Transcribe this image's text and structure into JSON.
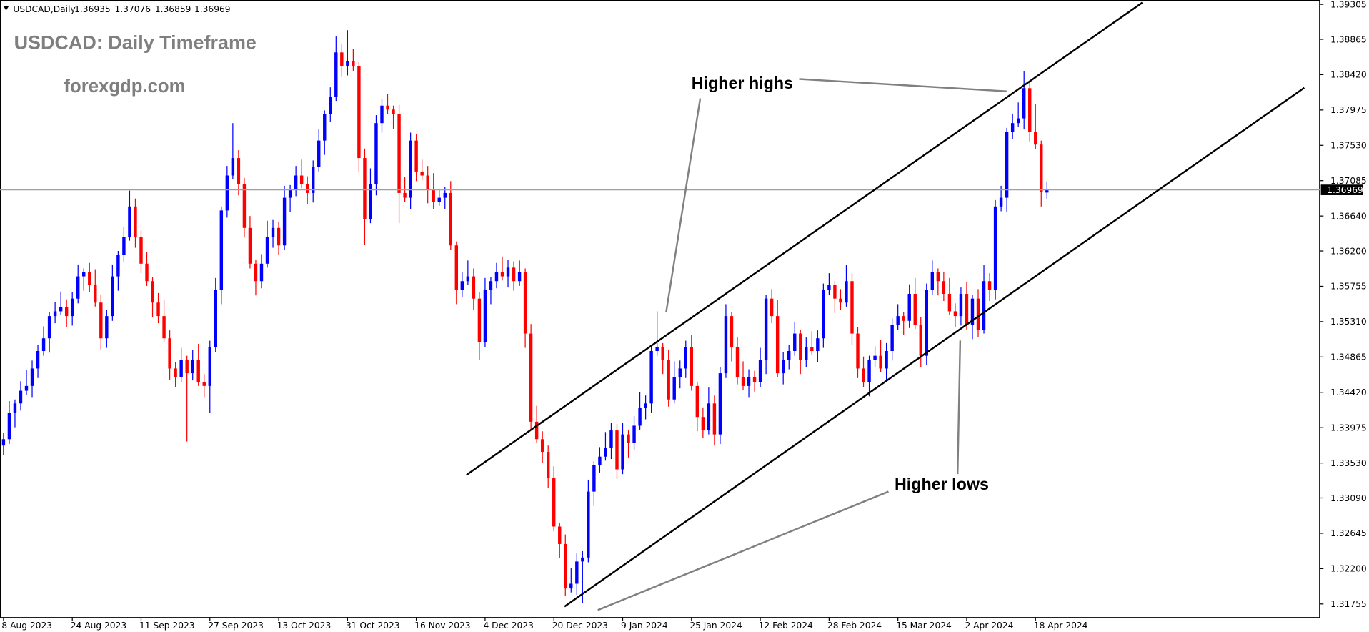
{
  "chart_data": {
    "type": "candlestick",
    "symbol_header": "USDCAD,Daily",
    "title": "USDCAD: Daily Timeframe",
    "subtitle": "forexgdp.com",
    "annotations": [
      "Higher highs",
      "Higher lows"
    ],
    "up_color": "#0000ff",
    "down_color": "#ff0000",
    "ylim": [
      1.3159,
      1.3936
    ],
    "yticks": [
      1.39305,
      1.38865,
      {
        "value": 1.3842,
        "label": "1.38420"
      },
      1.37975,
      {
        "value": 1.3753,
        "label": "1.37530"
      },
      1.37085,
      {
        "value": 1.3664,
        "label": "1.36640"
      },
      {
        "value": 1.362,
        "label": "1.36200"
      },
      1.35755,
      {
        "value": 1.3531,
        "label": "1.35310"
      },
      1.34865,
      {
        "value": 1.3442,
        "label": "1.34420"
      },
      1.33975,
      {
        "value": 1.3353,
        "label": "1.33530"
      },
      {
        "value": 1.3309,
        "label": "1.33090"
      },
      1.32645,
      {
        "value": 1.322,
        "label": "1.32200"
      },
      1.31755
    ],
    "categories": [
      "8 Aug 2023",
      null,
      null,
      null,
      null,
      null,
      null,
      null,
      null,
      null,
      null,
      null,
      "24 Aug 2023",
      null,
      null,
      null,
      null,
      null,
      null,
      null,
      null,
      null,
      null,
      null,
      "11 Sep 2023",
      null,
      null,
      null,
      null,
      null,
      null,
      null,
      null,
      null,
      null,
      null,
      "27 Sep 2023",
      null,
      null,
      null,
      null,
      null,
      null,
      null,
      null,
      null,
      null,
      null,
      "13 Oct 2023",
      null,
      null,
      null,
      null,
      null,
      null,
      null,
      null,
      null,
      null,
      null,
      "31 Oct 2023",
      null,
      null,
      null,
      null,
      null,
      null,
      null,
      null,
      null,
      null,
      null,
      "16 Nov 2023",
      null,
      null,
      null,
      null,
      null,
      null,
      null,
      null,
      null,
      null,
      null,
      "4 Dec 2023",
      null,
      null,
      null,
      null,
      null,
      null,
      null,
      null,
      null,
      null,
      null,
      "20 Dec 2023",
      null,
      null,
      null,
      null,
      null,
      null,
      null,
      null,
      null,
      null,
      null,
      "9 Jan 2024",
      null,
      null,
      null,
      null,
      null,
      null,
      null,
      null,
      null,
      null,
      null,
      "25 Jan 2024",
      null,
      null,
      null,
      null,
      null,
      null,
      null,
      null,
      null,
      null,
      null,
      "12 Feb 2024",
      null,
      null,
      null,
      null,
      null,
      null,
      null,
      null,
      null,
      null,
      null,
      "28 Feb 2024",
      null,
      null,
      null,
      null,
      null,
      null,
      null,
      null,
      null,
      null,
      null,
      "15 Mar 2024",
      null,
      null,
      null,
      null,
      null,
      null,
      null,
      null,
      null,
      null,
      null,
      "2 Apr 2024",
      null,
      null,
      null,
      null,
      null,
      null,
      null,
      null,
      null,
      null,
      null,
      "18 Apr 2024",
      null,
      null
    ],
    "open": [
      1.3375,
      1.3383,
      1.3416,
      1.3428,
      1.3444,
      1.345,
      1.3472,
      1.3494,
      1.351,
      1.3538,
      1.3544,
      1.3549,
      1.3538,
      1.356,
      1.3588,
      1.3593,
      1.3577,
      1.3555,
      1.351,
      1.3538,
      1.3588,
      1.3615,
      1.3638,
      1.3676,
      1.3638,
      1.3604,
      1.3582,
      1.3555,
      1.3538,
      1.351,
      1.3472,
      1.3461,
      1.3483,
      1.3466,
      1.3483,
      1.3455,
      1.345,
      1.3499,
      1.3571,
      1.3671,
      1.3715,
      1.3737,
      1.3704,
      1.3649,
      1.3604,
      1.3582,
      1.3604,
      1.3638,
      1.3649,
      1.3627,
      1.3687,
      1.3698,
      1.3715,
      1.3704,
      1.3693,
      1.3726,
      1.3759,
      1.3792,
      1.3814,
      1.387,
      1.3853,
      1.3859,
      1.3853,
      1.3737,
      1.366,
      1.3704,
      1.3781,
      1.3803,
      1.3798,
      1.3792,
      1.3693,
      1.3687,
      1.3759,
      1.372,
      1.3715,
      1.3698,
      1.3682,
      1.3687,
      1.3693,
      1.3627,
      1.3571,
      1.3582,
      1.3588,
      1.356,
      1.3505,
      1.3571,
      1.3582,
      1.3593,
      1.3588,
      1.3599,
      1.3582,
      1.3593,
      1.3516,
      1.3405,
      1.3383,
      1.3367,
      1.3334,
      1.3273,
      1.3251,
      1.3195,
      1.3201,
      1.3229,
      1.3234,
      1.3317,
      1.335,
      1.3361,
      1.3372,
      1.3394,
      1.3345,
      1.3389,
      1.3378,
      1.34,
      1.3422,
      1.3428,
      1.3494,
      1.3499,
      1.3483,
      1.3433,
      1.3461,
      1.3472,
      1.3499,
      1.345,
      1.3411,
      1.3394,
      1.3428,
      1.3389,
      1.3466,
      1.3538,
      1.3499,
      1.3461,
      1.345,
      1.3461,
      1.3455,
      1.3483,
      1.356,
      1.3538,
      1.3466,
      1.3483,
      1.3494,
      1.3516,
      1.3483,
      1.3499,
      1.3494,
      1.351,
      1.3571,
      1.3577,
      1.356,
      1.3555,
      1.3582,
      1.3516,
      1.3472,
      1.3455,
      1.3483,
      1.3488,
      1.3472,
      1.3494,
      1.3527,
      1.3538,
      1.3532,
      1.3566,
      1.3527,
      1.3488,
      1.3571,
      1.3593,
      1.3582,
      1.3566,
      1.3544,
      1.3538,
      1.3566,
      1.3527,
      1.356,
      1.3521,
      1.3582,
      1.3571,
      1.3676,
      1.3687,
      1.377,
      1.3781,
      1.3787,
      1.3825,
      1.377,
      1.3754,
      1.36935
    ],
    "high": [
      1.3391,
      1.3431,
      1.3433,
      1.3456,
      1.347,
      1.3482,
      1.3502,
      1.3525,
      1.3543,
      1.3556,
      1.3569,
      1.3559,
      1.3568,
      1.3603,
      1.3598,
      1.3605,
      1.3597,
      1.3565,
      1.3546,
      1.3603,
      1.362,
      1.365,
      1.3696,
      1.3686,
      1.3646,
      1.3619,
      1.3587,
      1.3567,
      1.3558,
      1.352,
      1.348,
      1.3498,
      1.3488,
      1.3495,
      1.3503,
      1.3465,
      1.3507,
      1.3586,
      1.3676,
      1.3727,
      1.3781,
      1.3747,
      1.3712,
      1.3664,
      1.3609,
      1.3616,
      1.3658,
      1.3659,
      1.3657,
      1.3702,
      1.3703,
      1.3727,
      1.3735,
      1.3714,
      1.3734,
      1.3774,
      1.3797,
      1.3826,
      1.389,
      1.388,
      1.3898,
      1.3874,
      1.3858,
      1.3749,
      1.3724,
      1.3791,
      1.3811,
      1.3818,
      1.3803,
      1.3804,
      1.3713,
      1.3769,
      1.3767,
      1.3735,
      1.3727,
      1.3718,
      1.3697,
      1.3701,
      1.3708,
      1.3632,
      1.3594,
      1.3608,
      1.3598,
      1.3568,
      1.3586,
      1.3587,
      1.3605,
      1.3613,
      1.3609,
      1.3607,
      1.3608,
      1.3598,
      1.3528,
      1.3425,
      1.3393,
      1.3375,
      1.3349,
      1.3278,
      1.3263,
      1.3221,
      1.3239,
      1.3242,
      1.3332,
      1.3355,
      1.3373,
      1.3392,
      1.3404,
      1.3402,
      1.3404,
      1.3394,
      1.3412,
      1.3442,
      1.3438,
      1.3502,
      1.3544,
      1.3504,
      1.3495,
      1.3481,
      1.3482,
      1.3507,
      1.3514,
      1.3455,
      1.3423,
      1.3448,
      1.3438,
      1.3474,
      1.3553,
      1.3543,
      1.3511,
      1.3481,
      1.3471,
      1.3469,
      1.3498,
      1.3565,
      1.3572,
      1.3558,
      1.3493,
      1.3502,
      1.3531,
      1.3521,
      1.3511,
      1.3519,
      1.352,
      1.3579,
      1.3592,
      1.3582,
      1.3572,
      1.3602,
      1.3592,
      1.3524,
      1.3487,
      1.3488,
      1.35,
      1.3508,
      1.3504,
      1.3535,
      1.3553,
      1.3543,
      1.3578,
      1.3586,
      1.3537,
      1.3579,
      1.3608,
      1.3598,
      1.3594,
      1.3586,
      1.3554,
      1.3574,
      1.3581,
      1.3565,
      1.3572,
      1.3602,
      1.3592,
      1.3684,
      1.3702,
      1.3775,
      1.3793,
      1.3807,
      1.3846,
      1.3833,
      1.3805,
      1.3759,
      1.37076
    ],
    "low": [
      1.3363,
      1.3377,
      1.3398,
      1.3419,
      1.3439,
      1.3436,
      1.346,
      1.3488,
      1.3492,
      1.3529,
      1.3539,
      1.3524,
      1.3526,
      1.3554,
      1.357,
      1.3568,
      1.355,
      1.3496,
      1.3498,
      1.3532,
      1.357,
      1.3606,
      1.3633,
      1.3624,
      1.3592,
      1.3576,
      1.3537,
      1.3529,
      1.3505,
      1.3458,
      1.3449,
      1.3455,
      1.338,
      1.3457,
      1.345,
      1.3436,
      1.3416,
      1.3493,
      1.3553,
      1.3662,
      1.371,
      1.369,
      1.3637,
      1.3598,
      1.3564,
      1.3573,
      1.3599,
      1.3624,
      1.3615,
      1.3621,
      1.3669,
      1.3689,
      1.3699,
      1.3679,
      1.3681,
      1.372,
      1.3741,
      1.3783,
      1.3809,
      1.3839,
      1.3841,
      1.3847,
      1.3719,
      1.3628,
      1.3655,
      1.369,
      1.3769,
      1.3792,
      1.3774,
      1.3655,
      1.3682,
      1.3673,
      1.3708,
      1.3709,
      1.368,
      1.3673,
      1.3677,
      1.3673,
      1.3621,
      1.3553,
      1.3562,
      1.3577,
      1.3546,
      1.3483,
      1.3499,
      1.3553,
      1.3573,
      1.3583,
      1.3574,
      1.357,
      1.3576,
      1.3498,
      1.3396,
      1.3378,
      1.3353,
      1.3322,
      1.3267,
      1.3233,
      1.3186,
      1.319,
      1.3187,
      1.3177,
      1.3228,
      1.3299,
      1.3341,
      1.3356,
      1.3358,
      1.3333,
      1.3339,
      1.336,
      1.3369,
      1.3395,
      1.3408,
      1.3416,
      1.3488,
      1.3465,
      1.3424,
      1.3428,
      1.3447,
      1.346,
      1.3444,
      1.3393,
      1.3385,
      1.3389,
      1.3375,
      1.3377,
      1.346,
      1.3481,
      1.3452,
      1.3445,
      1.3436,
      1.3443,
      1.3449,
      1.3465,
      1.3529,
      1.3461,
      1.3452,
      1.3471,
      1.3488,
      1.3465,
      1.3474,
      1.3489,
      1.348,
      1.3498,
      1.3565,
      1.3542,
      1.3546,
      1.355,
      1.3502,
      1.346,
      1.3449,
      1.3437,
      1.3474,
      1.3467,
      1.3458,
      1.3482,
      1.3521,
      1.3514,
      1.3523,
      1.3522,
      1.3474,
      1.3476,
      1.3565,
      1.3564,
      1.3557,
      1.3539,
      1.3524,
      1.3526,
      1.3521,
      1.3509,
      1.3512,
      1.3516,
      1.3557,
      1.3559,
      1.367,
      1.3669,
      1.3761,
      1.3776,
      1.3773,
      1.3758,
      1.3748,
      1.3676,
      1.36859
    ],
    "close": [
      1.3383,
      1.3416,
      1.3428,
      1.3444,
      1.345,
      1.3472,
      1.3494,
      1.351,
      1.3538,
      1.3544,
      1.3549,
      1.3538,
      1.356,
      1.3588,
      1.3593,
      1.3577,
      1.3555,
      1.351,
      1.3538,
      1.3588,
      1.3615,
      1.3638,
      1.3676,
      1.3638,
      1.3604,
      1.3582,
      1.3555,
      1.3538,
      1.351,
      1.3472,
      1.3461,
      1.3483,
      1.3466,
      1.3483,
      1.3455,
      1.345,
      1.3499,
      1.3571,
      1.3671,
      1.3715,
      1.3737,
      1.3704,
      1.3649,
      1.3604,
      1.3582,
      1.3604,
      1.3638,
      1.3649,
      1.3627,
      1.3687,
      1.3698,
      1.3715,
      1.3704,
      1.3693,
      1.3726,
      1.3759,
      1.3792,
      1.3814,
      1.387,
      1.3853,
      1.3859,
      1.3853,
      1.3737,
      1.366,
      1.3704,
      1.3781,
      1.3803,
      1.3798,
      1.3792,
      1.3693,
      1.3687,
      1.3759,
      1.372,
      1.3715,
      1.3698,
      1.3682,
      1.3687,
      1.3693,
      1.3627,
      1.3571,
      1.3582,
      1.3588,
      1.356,
      1.3505,
      1.3571,
      1.3582,
      1.3593,
      1.3588,
      1.3599,
      1.3582,
      1.3593,
      1.3516,
      1.3405,
      1.3383,
      1.3367,
      1.3334,
      1.3273,
      1.3251,
      1.3195,
      1.3201,
      1.3229,
      1.3234,
      1.3317,
      1.335,
      1.3361,
      1.3372,
      1.3394,
      1.3345,
      1.3389,
      1.3378,
      1.34,
      1.3422,
      1.3428,
      1.3494,
      1.3499,
      1.3483,
      1.3433,
      1.3461,
      1.3472,
      1.3499,
      1.345,
      1.3411,
      1.3394,
      1.3428,
      1.3389,
      1.3466,
      1.3538,
      1.3499,
      1.3461,
      1.345,
      1.3461,
      1.3455,
      1.3483,
      1.356,
      1.3538,
      1.3466,
      1.3483,
      1.3494,
      1.3516,
      1.3483,
      1.3499,
      1.3494,
      1.351,
      1.3571,
      1.3577,
      1.356,
      1.3555,
      1.3582,
      1.3516,
      1.3472,
      1.3455,
      1.3483,
      1.3488,
      1.3472,
      1.3494,
      1.3527,
      1.3538,
      1.3532,
      1.3566,
      1.3527,
      1.3488,
      1.3571,
      1.3593,
      1.3582,
      1.3566,
      1.3544,
      1.3538,
      1.3566,
      1.3527,
      1.356,
      1.3521,
      1.3582,
      1.3571,
      1.3676,
      1.3687,
      1.377,
      1.3781,
      1.3787,
      1.3825,
      1.377,
      1.3754,
      1.3694,
      1.36969
    ]
  }
}
